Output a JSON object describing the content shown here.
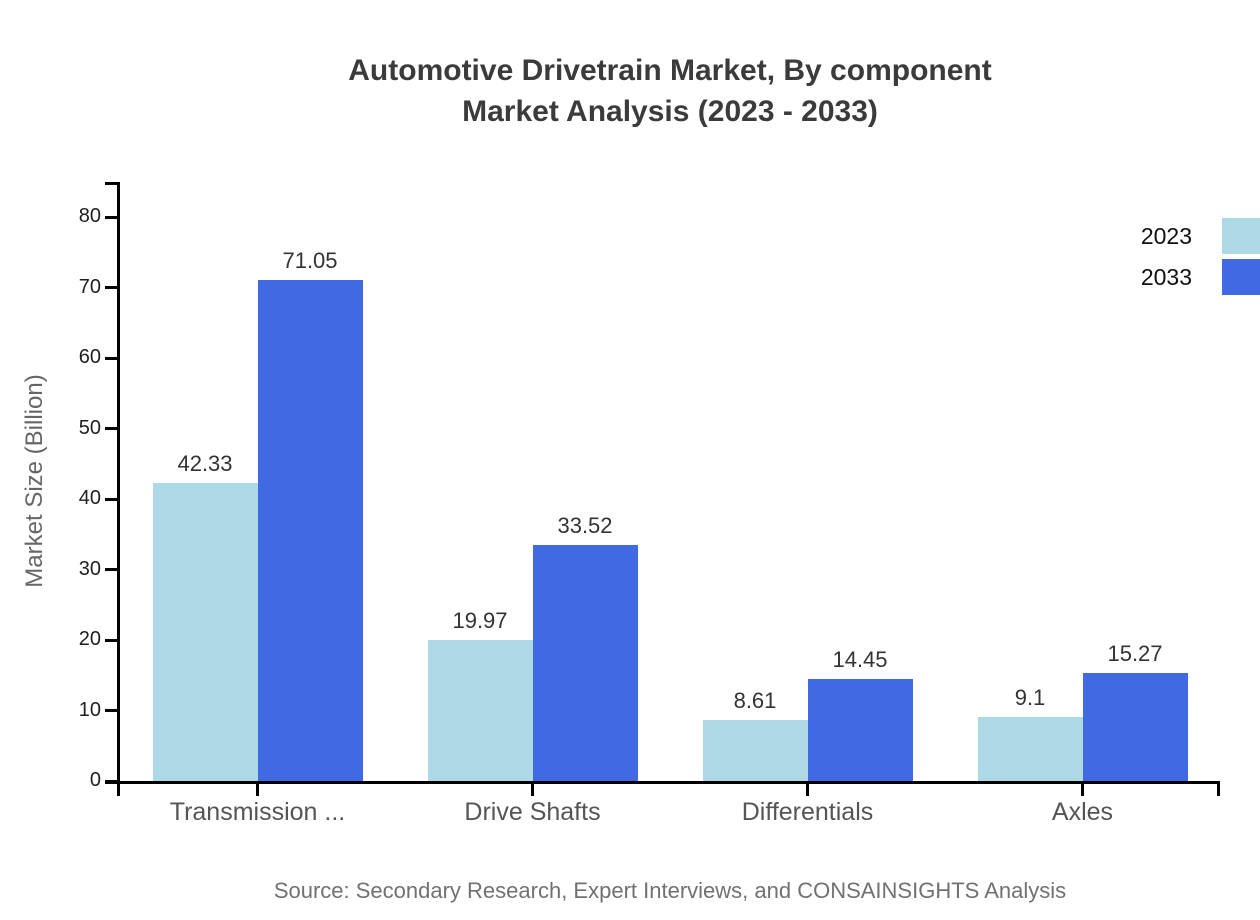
{
  "title": {
    "line1": "Automotive Drivetrain Market, By component",
    "line2": "Market Analysis (2023 - 2033)"
  },
  "source": "Source: Secondary Research, Expert Interviews, and CONSAINSIGHTS Analysis",
  "colors": {
    "series_2023": "#ADD8E6",
    "series_2033": "#4169E1",
    "axis": "#000000",
    "title_text": "#3b3b3b",
    "value_label_text": "#333333",
    "category_text": "#555555",
    "muted_text": "#717171"
  },
  "chart_data": {
    "type": "bar",
    "title": "Automotive Drivetrain Market, By component Market Analysis (2023 - 2033)",
    "categories": [
      "Transmission ...",
      "Drive Shafts",
      "Differentials",
      "Axles"
    ],
    "series": [
      {
        "name": "2023",
        "color": "#ADD8E6",
        "values": [
          42.33,
          19.97,
          8.61,
          9.1
        ]
      },
      {
        "name": "2033",
        "color": "#4169E1",
        "values": [
          71.05,
          33.52,
          14.45,
          15.27
        ]
      }
    ],
    "xlabel": "",
    "ylabel": "Market Size (Billion)",
    "ylim": [
      0,
      85
    ],
    "yticks": [
      0,
      10,
      20,
      30,
      40,
      50,
      60,
      70,
      80
    ],
    "grid": false,
    "legend_position": "top-right"
  }
}
